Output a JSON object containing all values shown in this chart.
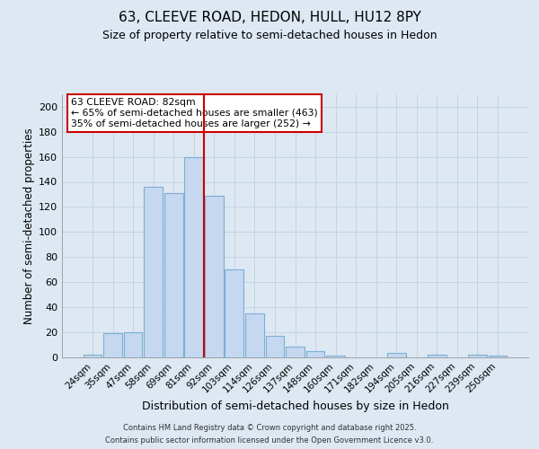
{
  "title_line1": "63, CLEEVE ROAD, HEDON, HULL, HU12 8PY",
  "title_line2": "Size of property relative to semi-detached houses in Hedon",
  "xlabel": "Distribution of semi-detached houses by size in Hedon",
  "ylabel": "Number of semi-detached properties",
  "categories": [
    "24sqm",
    "35sqm",
    "47sqm",
    "58sqm",
    "69sqm",
    "81sqm",
    "92sqm",
    "103sqm",
    "114sqm",
    "126sqm",
    "137sqm",
    "148sqm",
    "160sqm",
    "171sqm",
    "182sqm",
    "194sqm",
    "205sqm",
    "216sqm",
    "227sqm",
    "239sqm",
    "250sqm"
  ],
  "values": [
    2,
    19,
    20,
    136,
    131,
    160,
    129,
    70,
    35,
    17,
    8,
    5,
    1,
    0,
    0,
    3,
    0,
    2,
    0,
    2,
    1
  ],
  "bar_color": "#C5D8EF",
  "bar_edge_color": "#7BAFD4",
  "property_line_x": 5.5,
  "property_line_color": "#CC0000",
  "annotation_line1": "63 CLEEVE ROAD: 82sqm",
  "annotation_line2": "← 65% of semi-detached houses are smaller (463)",
  "annotation_line3": "35% of semi-detached houses are larger (252) →",
  "annotation_box_edge_color": "#CC0000",
  "ylim": [
    0,
    210
  ],
  "yticks": [
    0,
    20,
    40,
    60,
    80,
    100,
    120,
    140,
    160,
    180,
    200
  ],
  "background_color": "#DDE8F3",
  "footer_line1": "Contains HM Land Registry data © Crown copyright and database right 2025.",
  "footer_line2": "Contains public sector information licensed under the Open Government Licence v3.0.",
  "grid_color": "#C0D0E0"
}
